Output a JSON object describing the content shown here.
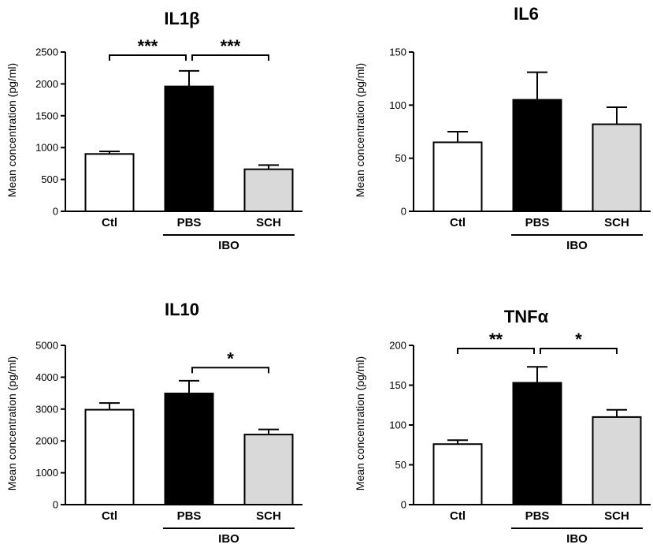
{
  "chart_data": [
    {
      "type": "bar",
      "title": "IL1β",
      "ylabel": "Mean concentration (pg/ml)",
      "categories": [
        "Ctl",
        "PBS",
        "SCH"
      ],
      "values": [
        900,
        1960,
        660
      ],
      "errors": [
        40,
        245,
        65
      ],
      "colors": [
        "#ffffff",
        "#000000",
        "#d9d9d9"
      ],
      "ylim": [
        0,
        2500
      ],
      "yticks": [
        0,
        500,
        1000,
        1500,
        2000,
        2500
      ],
      "group_label": "IBO",
      "group_span": [
        "PBS",
        "SCH"
      ],
      "comparisons": [
        {
          "from": "Ctl",
          "to": "PBS",
          "label": "***",
          "y": 2450
        },
        {
          "from": "PBS",
          "to": "SCH",
          "label": "***",
          "y": 2450
        }
      ]
    },
    {
      "type": "bar",
      "title": "IL6",
      "ylabel": "Mean concentration (pg/ml)",
      "categories": [
        "Ctl",
        "PBS",
        "SCH"
      ],
      "values": [
        65,
        105,
        82
      ],
      "errors": [
        10,
        26,
        16
      ],
      "colors": [
        "#ffffff",
        "#000000",
        "#d9d9d9"
      ],
      "ylim": [
        0,
        150
      ],
      "yticks": [
        0,
        50,
        100,
        150
      ],
      "group_label": "IBO",
      "group_span": [
        "PBS",
        "SCH"
      ],
      "comparisons": []
    },
    {
      "type": "bar",
      "title": "IL10",
      "ylabel": "Mean concentration (pg/ml)",
      "categories": [
        "Ctl",
        "PBS",
        "SCH"
      ],
      "values": [
        2980,
        3490,
        2200
      ],
      "errors": [
        210,
        400,
        160
      ],
      "colors": [
        "#ffffff",
        "#000000",
        "#d9d9d9"
      ],
      "ylim": [
        0,
        5000
      ],
      "yticks": [
        0,
        1000,
        2000,
        3000,
        4000,
        5000
      ],
      "group_label": "IBO",
      "group_span": [
        "PBS",
        "SCH"
      ],
      "comparisons": [
        {
          "from": "PBS",
          "to": "SCH",
          "label": "*",
          "y": 4300
        }
      ]
    },
    {
      "type": "bar",
      "title": "TNFα",
      "ylabel": "Mean concentration (pg/ml)",
      "categories": [
        "Ctl",
        "PBS",
        "SCH"
      ],
      "values": [
        76,
        153,
        110
      ],
      "errors": [
        5,
        20,
        9
      ],
      "colors": [
        "#ffffff",
        "#000000",
        "#d9d9d9"
      ],
      "ylim": [
        0,
        200
      ],
      "yticks": [
        0,
        50,
        100,
        150,
        200
      ],
      "group_label": "IBO",
      "group_span": [
        "PBS",
        "SCH"
      ],
      "comparisons": [
        {
          "from": "Ctl",
          "to": "PBS",
          "label": "**",
          "y": 196
        },
        {
          "from": "PBS",
          "to": "SCH",
          "label": "*",
          "y": 196
        }
      ]
    }
  ]
}
